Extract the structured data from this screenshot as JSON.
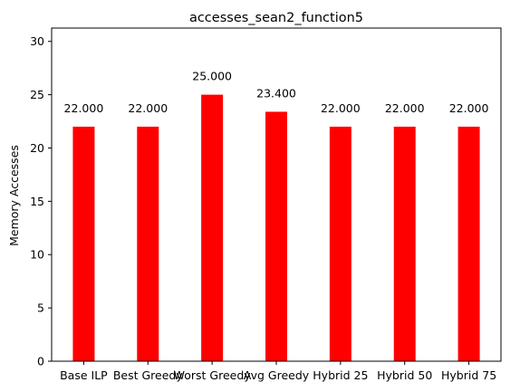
{
  "chart_data": {
    "type": "bar",
    "title": "accesses_sean2_function5",
    "xlabel": "",
    "ylabel": "Memory Accesses",
    "categories": [
      "Base ILP",
      "Best Greedy",
      "Worst Greedy",
      "Avg Greedy",
      "Hybrid 25",
      "Hybrid 50",
      "Hybrid 75"
    ],
    "values": [
      22.0,
      22.0,
      25.0,
      23.4,
      22.0,
      22.0,
      22.0
    ],
    "value_labels": [
      "22.000",
      "22.000",
      "25.000",
      "23.400",
      "22.000",
      "22.000",
      "22.000"
    ],
    "ylim": [
      0,
      31.25
    ],
    "yticks": [
      0,
      5,
      10,
      15,
      20,
      25,
      30
    ],
    "ytick_labels": [
      "0",
      "5",
      "10",
      "15",
      "20",
      "25",
      "30"
    ],
    "bar_color": "#ff0000",
    "grid": false,
    "legend": "none"
  }
}
